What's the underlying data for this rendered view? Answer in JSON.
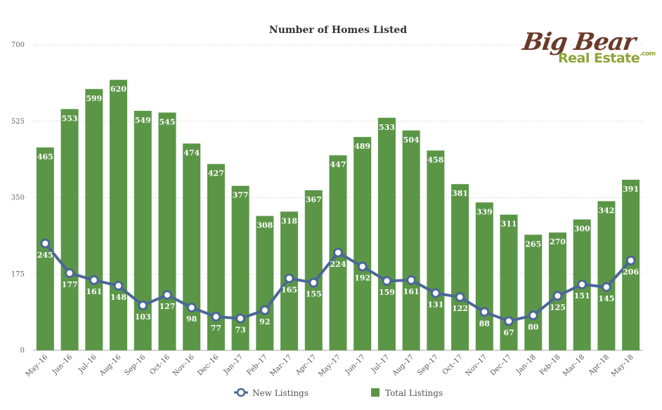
{
  "chart_data": {
    "type": "bar",
    "title": "Number of Homes Listed",
    "categories": [
      "May–16",
      "Jun–16",
      "Jul–16",
      "Aug–16",
      "Sep–16",
      "Oct–16",
      "Nov–16",
      "Dec–16",
      "Jan–17",
      "Feb–17",
      "Mar–17",
      "Apr–17",
      "May–17",
      "Jun–17",
      "Jul–17",
      "Aug–17",
      "Sep–17",
      "Oct–17",
      "Nov–17",
      "Dec–17",
      "Jan–18",
      "Feb–18",
      "Mar–18",
      "Apr–18",
      "May–18"
    ],
    "series": [
      {
        "name": "New Listings",
        "type": "line",
        "color": "#4a6796",
        "values": [
          245,
          177,
          161,
          148,
          103,
          127,
          98,
          77,
          73,
          92,
          165,
          155,
          224,
          192,
          159,
          161,
          131,
          122,
          88,
          67,
          80,
          125,
          151,
          145,
          206
        ]
      },
      {
        "name": "Total Listings",
        "type": "bar",
        "color": "#5b9647",
        "values": [
          465,
          553,
          599,
          620,
          549,
          545,
          474,
          427,
          377,
          308,
          318,
          367,
          447,
          489,
          533,
          504,
          458,
          381,
          339,
          311,
          265,
          270,
          300,
          342,
          391
        ]
      }
    ],
    "ylim": [
      0,
      700
    ],
    "yticks": [
      0,
      175,
      350,
      525,
      700
    ],
    "grid": true,
    "legend": "bottom"
  },
  "logo": {
    "line1": "Big Bear",
    "line2": "Real Estate",
    "suffix": ".com"
  }
}
